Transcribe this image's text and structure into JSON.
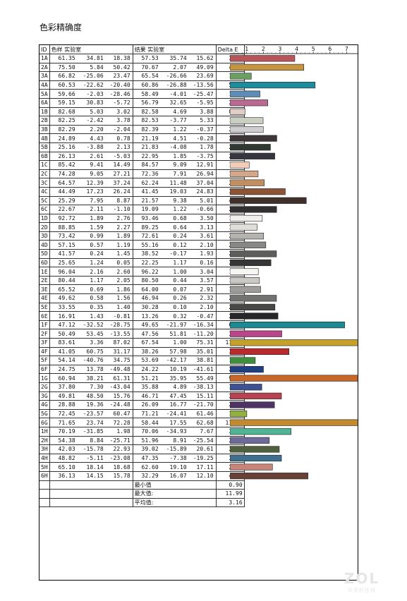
{
  "title": "色彩精确度",
  "headers": {
    "id": "ID",
    "sample": "色样 实验室",
    "result": "结果 实验室",
    "delta": "Delta E"
  },
  "chart_data": {
    "type": "bar",
    "orientation": "horizontal",
    "axis_ticks": [
      "1",
      "2",
      "3",
      "4",
      "5",
      "6",
      "7"
    ],
    "xlim": [
      0,
      7.7
    ],
    "rows": [
      {
        "id": "1A",
        "sample": [
          "61.35",
          "34.81",
          "18.38"
        ],
        "result": [
          "57.53",
          "35.74",
          "15.62"
        ],
        "delta": "3.89",
        "value": 3.89,
        "color": "#b8555a"
      },
      {
        "id": "2A",
        "sample": [
          "75.50",
          "5.84",
          "50.42"
        ],
        "result": [
          "70.67",
          "2.07",
          "49.09"
        ],
        "delta": "4.43",
        "value": 4.43,
        "color": "#c69540"
      },
      {
        "id": "3A",
        "sample": [
          "66.82",
          "-25.06",
          "23.47"
        ],
        "result": [
          "65.54",
          "-26.66",
          "23.69"
        ],
        "delta": "1.28",
        "value": 1.28,
        "color": "#6c9e63"
      },
      {
        "id": "4A",
        "sample": [
          "60.53",
          "-22.62",
          "-20.40"
        ],
        "result": [
          "60.86",
          "-26.88",
          "-13.56"
        ],
        "delta": "5.11",
        "value": 5.11,
        "color": "#1d8d9b"
      },
      {
        "id": "5A",
        "sample": [
          "59.66",
          "-2.03",
          "-28.46"
        ],
        "result": [
          "58.49",
          "-4.01",
          "-25.47"
        ],
        "delta": "1.80",
        "value": 1.8,
        "color": "#5f8bb7"
      },
      {
        "id": "6A",
        "sample": [
          "59.15",
          "30.83",
          "-5.72"
        ],
        "result": [
          "56.79",
          "32.65",
          "-5.95"
        ],
        "delta": "2.27",
        "value": 2.27,
        "color": "#b86a91"
      },
      {
        "id": "1B",
        "sample": [
          "82.68",
          "5.03",
          "3.02"
        ],
        "result": [
          "82.58",
          "4.69",
          "3.88"
        ],
        "delta": "0.90",
        "value": 0.9,
        "color": "#e0cdc6"
      },
      {
        "id": "2B",
        "sample": [
          "82.25",
          "-2.42",
          "3.78"
        ],
        "result": [
          "82.53",
          "-3.77",
          "5.33"
        ],
        "delta": "1.99",
        "value": 1.99,
        "color": "#c9d0c2"
      },
      {
        "id": "3B",
        "sample": [
          "82.29",
          "2.20",
          "-2.04"
        ],
        "result": [
          "82.39",
          "1.22",
          "-0.37"
        ],
        "delta": "2.00",
        "value": 2.0,
        "color": "#cfcdd0"
      },
      {
        "id": "4B",
        "sample": [
          "24.89",
          "4.43",
          "0.78"
        ],
        "result": [
          "21.19",
          "4.51",
          "-0.28"
        ],
        "delta": "2.81",
        "value": 2.81,
        "color": "#3c3638"
      },
      {
        "id": "5B",
        "sample": [
          "25.16",
          "-3.88",
          "2.13"
        ],
        "result": [
          "21.83",
          "-4.08",
          "1.78"
        ],
        "delta": "2.43",
        "value": 2.43,
        "color": "#303832"
      },
      {
        "id": "6B",
        "sample": [
          "26.13",
          "2.61",
          "-5.03"
        ],
        "result": [
          "22.95",
          "1.85",
          "-3.75"
        ],
        "delta": "2.69",
        "value": 2.69,
        "color": "#363640"
      },
      {
        "id": "1C",
        "sample": [
          "85.42",
          "9.41",
          "14.49"
        ],
        "result": [
          "84.57",
          "9.09",
          "12.91"
        ],
        "delta": "1.16",
        "value": 1.16,
        "color": "#f2cdb8"
      },
      {
        "id": "2C",
        "sample": [
          "74.28",
          "9.05",
          "27.21"
        ],
        "result": [
          "72.36",
          "7.91",
          "26.94"
        ],
        "delta": "1.69",
        "value": 1.69,
        "color": "#d3a88a"
      },
      {
        "id": "3C",
        "sample": [
          "64.57",
          "12.39",
          "37.24"
        ],
        "result": [
          "62.24",
          "11.48",
          "37.04"
        ],
        "delta": "2.06",
        "value": 2.06,
        "color": "#c38e5f"
      },
      {
        "id": "4C",
        "sample": [
          "44.49",
          "17.23",
          "26.24"
        ],
        "result": [
          "41.45",
          "19.03",
          "24.83"
        ],
        "delta": "3.32",
        "value": 3.32,
        "color": "#8b5437"
      },
      {
        "id": "5C",
        "sample": [
          "25.29",
          "7.95",
          "8.87"
        ],
        "result": [
          "21.57",
          "9.38",
          "5.01"
        ],
        "delta": "4.58",
        "value": 4.58,
        "color": "#40302c"
      },
      {
        "id": "6C",
        "sample": [
          "22.67",
          "2.11",
          "-1.10"
        ],
        "result": [
          "19.09",
          "1.22",
          "-0.66"
        ],
        "delta": "2.80",
        "value": 2.8,
        "color": "#322f31"
      },
      {
        "id": "1D",
        "sample": [
          "92.72",
          "1.89",
          "2.76"
        ],
        "result": [
          "93.46",
          "0.68",
          "3.50"
        ],
        "delta": "1.94",
        "value": 1.94,
        "color": "#f1efeb"
      },
      {
        "id": "2D",
        "sample": [
          "88.85",
          "1.59",
          "2.27"
        ],
        "result": [
          "89.25",
          "0.64",
          "3.13"
        ],
        "delta": "1.63",
        "value": 1.63,
        "color": "#e1dfda"
      },
      {
        "id": "3D",
        "sample": [
          "73.42",
          "0.99",
          "1.89"
        ],
        "result": [
          "72.61",
          "0.24",
          "3.61"
        ],
        "delta": "2.02",
        "value": 2.02,
        "color": "#b4b3ae"
      },
      {
        "id": "4D",
        "sample": [
          "57.15",
          "0.57",
          "1.19"
        ],
        "result": [
          "55.16",
          "0.12",
          "2.10"
        ],
        "delta": "2.15",
        "value": 2.15,
        "color": "#878785"
      },
      {
        "id": "5D",
        "sample": [
          "41.57",
          "0.24",
          "1.45"
        ],
        "result": [
          "38.52",
          "-0.17",
          "1.93"
        ],
        "delta": "2.79",
        "value": 2.79,
        "color": "#5d5d5c"
      },
      {
        "id": "6D",
        "sample": [
          "25.65",
          "1.24",
          "0.05"
        ],
        "result": [
          "22.25",
          "1.17",
          "0.16"
        ],
        "delta": "2.46",
        "value": 2.46,
        "color": "#363636"
      },
      {
        "id": "1E",
        "sample": [
          "96.04",
          "2.16",
          "2.60"
        ],
        "result": [
          "96.22",
          "1.00",
          "3.04"
        ],
        "delta": "1.70",
        "value": 1.7,
        "color": "#f8f6f3"
      },
      {
        "id": "2E",
        "sample": [
          "80.44",
          "1.17",
          "2.05"
        ],
        "result": [
          "80.50",
          "0.44",
          "3.57"
        ],
        "delta": "1.77",
        "value": 1.77,
        "color": "#cac9c4"
      },
      {
        "id": "3E",
        "sample": [
          "65.52",
          "0.69",
          "1.86"
        ],
        "result": [
          "64.00",
          "0.07",
          "2.91"
        ],
        "delta": "1.84",
        "value": 1.84,
        "color": "#9e9d99"
      },
      {
        "id": "4E",
        "sample": [
          "49.62",
          "0.58",
          "1.56"
        ],
        "result": [
          "46.94",
          "0.26",
          "2.32"
        ],
        "delta": "2.79",
        "value": 2.79,
        "color": "#727270"
      },
      {
        "id": "5E",
        "sample": [
          "33.55",
          "0.35",
          "1.40"
        ],
        "result": [
          "30.28",
          "0.10",
          "2.10"
        ],
        "delta": "2.70",
        "value": 2.7,
        "color": "#484847"
      },
      {
        "id": "6E",
        "sample": [
          "16.91",
          "1.43",
          "-0.81"
        ],
        "result": [
          "13.26",
          "0.32",
          "-0.47"
        ],
        "delta": "2.88",
        "value": 2.88,
        "color": "#272628"
      },
      {
        "id": "1F",
        "sample": [
          "47.12",
          "-32.52",
          "-28.75"
        ],
        "result": [
          "49.65",
          "-21.97",
          "-16.34"
        ],
        "delta": "6.88",
        "value": 6.88,
        "color": "#1b8a94"
      },
      {
        "id": "2F",
        "sample": [
          "50.49",
          "53.45",
          "-13.55"
        ],
        "result": [
          "47.56",
          "51.81",
          "-11.20"
        ],
        "delta": "3.11",
        "value": 3.11,
        "color": "#b9458a"
      },
      {
        "id": "3F",
        "sample": [
          "83.61",
          "3.36",
          "87.02"
        ],
        "result": [
          "67.54",
          "1.00",
          "75.31"
        ],
        "delta": "11.99",
        "value": 11.99,
        "color": "#c5a02b"
      },
      {
        "id": "4F",
        "sample": [
          "41.05",
          "60.75",
          "31.17"
        ],
        "result": [
          "38.26",
          "57.98",
          "35.01"
        ],
        "delta": "3.54",
        "value": 3.54,
        "color": "#b82a2b"
      },
      {
        "id": "5F",
        "sample": [
          "54.14",
          "-40.76",
          "34.75"
        ],
        "result": [
          "53.69",
          "-42.17",
          "38.81"
        ],
        "delta": "1.52",
        "value": 1.52,
        "color": "#3d8f3b"
      },
      {
        "id": "6F",
        "sample": [
          "24.75",
          "13.78",
          "-49.48"
        ],
        "result": [
          "24.22",
          "10.19",
          "-41.61"
        ],
        "delta": "2.01",
        "value": 2.01,
        "color": "#1f3e83"
      },
      {
        "id": "1G",
        "sample": [
          "60.94",
          "38.21",
          "61.31"
        ],
        "result": [
          "51.21",
          "35.95",
          "55.49"
        ],
        "delta": "9.21",
        "value": 9.21,
        "color": "#c8672a"
      },
      {
        "id": "2G",
        "sample": [
          "37.80",
          "7.30",
          "-43.04"
        ],
        "result": [
          "35.88",
          "4.89",
          "-38.13"
        ],
        "delta": "1.91",
        "value": 1.91,
        "color": "#3c5295"
      },
      {
        "id": "3G",
        "sample": [
          "49.81",
          "48.50",
          "15.76"
        ],
        "result": [
          "46.71",
          "47.45",
          "15.11"
        ],
        "delta": "3.09",
        "value": 3.09,
        "color": "#b6434f"
      },
      {
        "id": "4G",
        "sample": [
          "28.88",
          "19.36",
          "-24.48"
        ],
        "result": [
          "26.09",
          "16.77",
          "-21.70"
        ],
        "delta": "2.67",
        "value": 2.67,
        "color": "#4e3464"
      },
      {
        "id": "5G",
        "sample": [
          "72.45",
          "-23.57",
          "60.47"
        ],
        "result": [
          "71.21",
          "-24.41",
          "61.46"
        ],
        "delta": "1.01",
        "value": 1.01,
        "color": "#93b13f"
      },
      {
        "id": "6G",
        "sample": [
          "71.65",
          "23.74",
          "72.28"
        ],
        "result": [
          "58.44",
          "17.55",
          "62.68"
        ],
        "delta": "11.34",
        "value": 11.34,
        "color": "#c28a2c"
      },
      {
        "id": "1H",
        "sample": [
          "70.19",
          "-31.85",
          "1.98"
        ],
        "result": [
          "70.06",
          "-34.93",
          "7.67"
        ],
        "delta": "3.67",
        "value": 3.67,
        "color": "#4fb496"
      },
      {
        "id": "2H",
        "sample": [
          "54.38",
          "8.84",
          "-25.71"
        ],
        "result": [
          "51.96",
          "8.91",
          "-25.54"
        ],
        "delta": "2.36",
        "value": 2.36,
        "color": "#6e6a9a"
      },
      {
        "id": "3H",
        "sample": [
          "42.03",
          "-15.78",
          "22.93"
        ],
        "result": [
          "39.02",
          "-15.89",
          "20.61"
        ],
        "delta": "2.96",
        "value": 2.96,
        "color": "#4f603e"
      },
      {
        "id": "4H",
        "sample": [
          "48.82",
          "-5.11",
          "-23.08"
        ],
        "result": [
          "47.35",
          "-7.38",
          "-19.25"
        ],
        "delta": "3.09",
        "value": 3.09,
        "color": "#3f6e8e"
      },
      {
        "id": "5H",
        "sample": [
          "65.10",
          "18.14",
          "18.68"
        ],
        "result": [
          "62.60",
          "19.10",
          "17.11"
        ],
        "delta": "2.55",
        "value": 2.55,
        "color": "#c7847a"
      },
      {
        "id": "6H",
        "sample": [
          "36.13",
          "14.15",
          "15.78"
        ],
        "result": [
          "32.29",
          "16.07",
          "12.10"
        ],
        "delta": "4.68",
        "value": 4.68,
        "color": "#6a4036"
      }
    ]
  },
  "summary": [
    {
      "label": "最小值",
      "value": "0.90"
    },
    {
      "label": "最大值:",
      "value": "11.99"
    },
    {
      "label": "平均值:",
      "value": "3.16"
    }
  ],
  "watermark": {
    "logo": "ZOL",
    "sub": "中关村在线"
  }
}
